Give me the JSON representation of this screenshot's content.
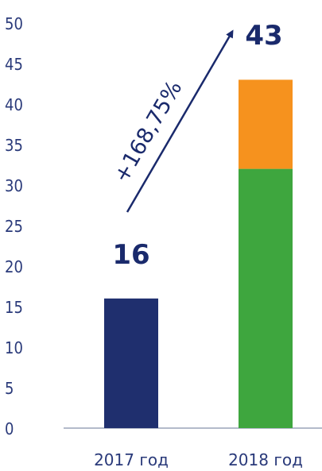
{
  "chart_data": {
    "type": "bar",
    "stacked": true,
    "categories": [
      "2017 год",
      "2018 год"
    ],
    "series": [
      {
        "values": [
          16,
          32
        ],
        "colors": [
          "#1f2f6e",
          "#3ea63e"
        ]
      },
      {
        "values": [
          0,
          11
        ],
        "colors": [
          "#f6921e",
          "#f6921e"
        ]
      }
    ],
    "totals": [
      "16",
      "43"
    ],
    "growth_label": "+168,75%",
    "y_ticks": [
      0,
      5,
      10,
      15,
      20,
      25,
      30,
      35,
      40,
      45,
      50
    ],
    "ylim": [
      0,
      50
    ],
    "grid": false,
    "legend": "none",
    "axis_color": "#9aa3b8",
    "text_color": "#1a2a6c"
  }
}
